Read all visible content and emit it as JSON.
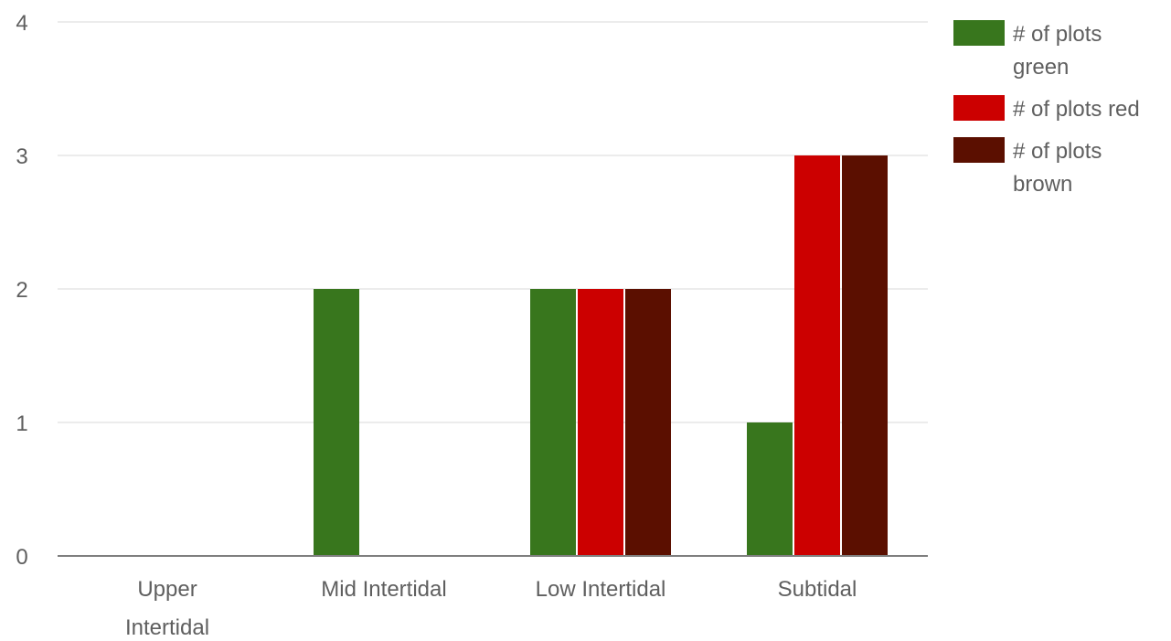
{
  "chart_data": {
    "type": "bar",
    "title": "",
    "xlabel": "",
    "ylabel": "",
    "ylim": [
      0,
      4
    ],
    "y_ticks": [
      0,
      1,
      2,
      3,
      4
    ],
    "grid": true,
    "legend_position": "right",
    "categories": [
      [
        "Upper",
        "Intertidal"
      ],
      [
        "Mid Intertidal"
      ],
      [
        "Low Intertidal"
      ],
      [
        "Subtidal"
      ]
    ],
    "series": [
      {
        "name": [
          "# of plots",
          "green"
        ],
        "color": "#38761d",
        "values": [
          0,
          2,
          2,
          1
        ]
      },
      {
        "name": [
          "# of plots red"
        ],
        "color": "#cc0000",
        "values": [
          0,
          0,
          2,
          3
        ]
      },
      {
        "name": [
          "# of plots",
          "brown"
        ],
        "color": "#5b0f00",
        "values": [
          0,
          0,
          2,
          3
        ]
      }
    ]
  }
}
